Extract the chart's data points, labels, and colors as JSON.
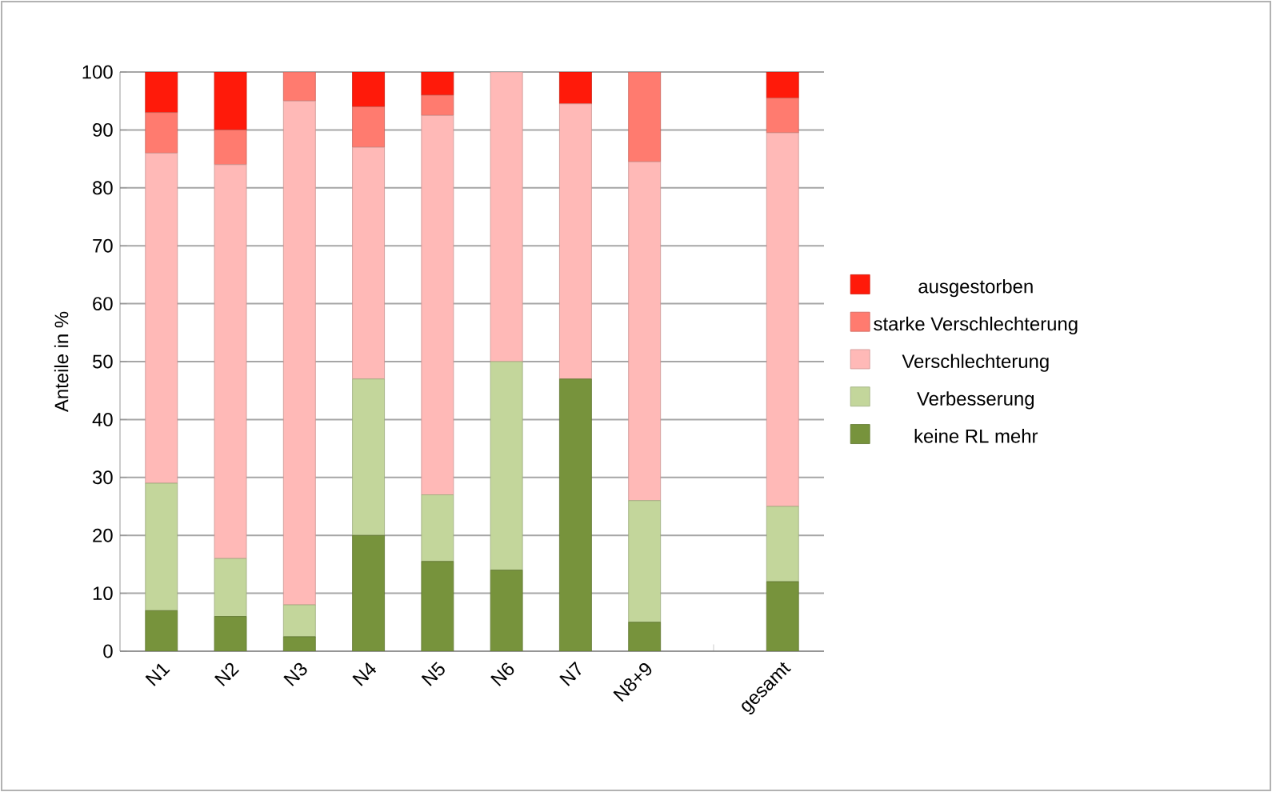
{
  "chart_data": {
    "type": "bar",
    "stacked": true,
    "ylabel": "Anteile in %",
    "categories": [
      "N1",
      "N2",
      "N3",
      "N4",
      "N5",
      "N6",
      "N7",
      "N8+9",
      null,
      "gesamt"
    ],
    "ylim": [
      0,
      100
    ],
    "yticks": [
      0,
      10,
      20,
      30,
      40,
      50,
      60,
      70,
      80,
      90,
      100
    ],
    "grid": "y",
    "legend": "right",
    "series": [
      {
        "name": "keine RL mehr",
        "color": "#77933c",
        "values": [
          7,
          6,
          2.5,
          20,
          15.5,
          14,
          47,
          5,
          null,
          12
        ]
      },
      {
        "name": "Verbesserung",
        "color": "#c3d69b",
        "values": [
          22,
          10,
          5.5,
          27,
          11.5,
          36,
          0,
          21,
          null,
          13
        ]
      },
      {
        "name": "Verschlechterung",
        "color": "#ffb9b7",
        "values": [
          57,
          68,
          87,
          40,
          65.5,
          50,
          47.5,
          58.5,
          null,
          64.5
        ]
      },
      {
        "name": "starke Verschlechterung",
        "color": "#ff7b6f",
        "values": [
          7,
          6,
          5,
          7,
          3.5,
          0,
          0,
          15.5,
          null,
          6
        ]
      },
      {
        "name": "ausgestorben",
        "color": "#ff1a0a",
        "values": [
          7,
          10,
          0,
          6,
          4,
          0,
          5.5,
          0,
          null,
          4.5
        ]
      }
    ]
  }
}
